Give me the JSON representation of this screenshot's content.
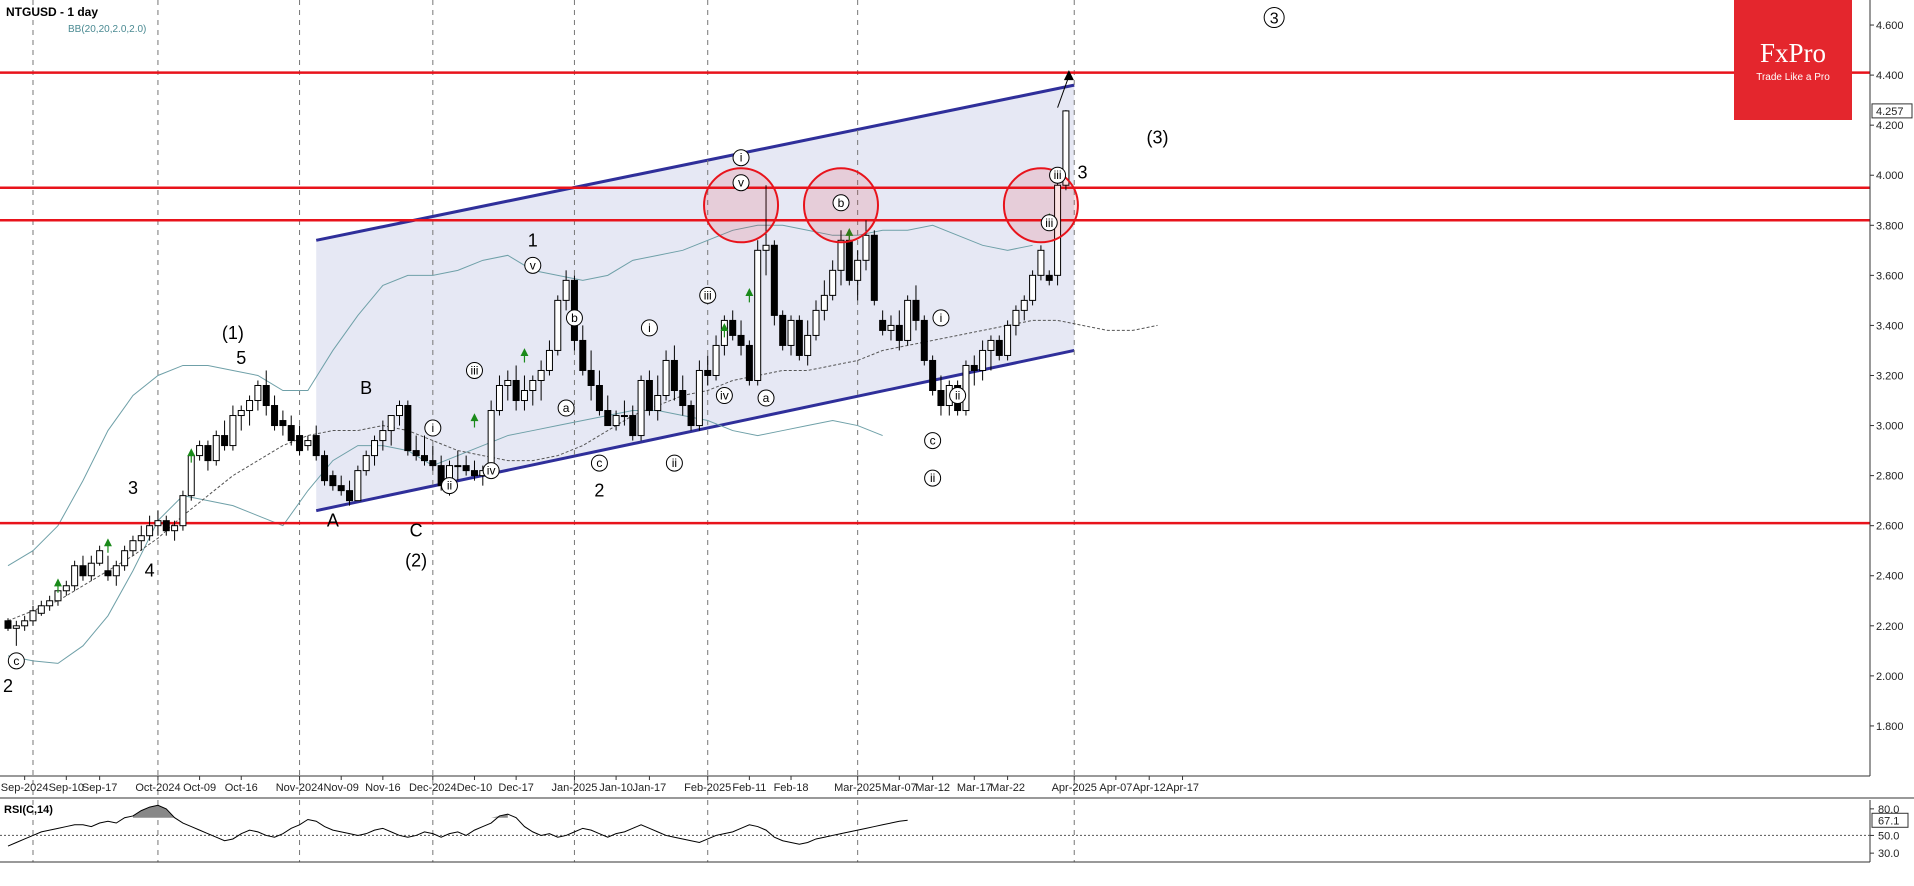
{
  "header": {
    "title": "NTGUSD - 1 day",
    "indicator": "BB(20,20,2.0,2.0)"
  },
  "logo": {
    "brand": "FxPro",
    "tagline": "Trade Like a Pro",
    "color": "#e4262d"
  },
  "colors": {
    "level_line": "#e8131b",
    "channel_line": "#2f2f9a",
    "channel_fill": "#e6e8f4",
    "bb_band": "#6fa0a8",
    "bb_mid": "#555555",
    "up_arrow": "#1a8a1a",
    "circle": "#e8131b"
  },
  "chart_data": {
    "type": "candlestick",
    "symbol": "NTGUSD",
    "timeframe": "1 day",
    "ylim": [
      1.6,
      4.7
    ],
    "y_ticks": [
      "4.600",
      "4.400",
      "4.200",
      "4.000",
      "3.800",
      "3.600",
      "3.400",
      "3.200",
      "3.000",
      "2.800",
      "2.600",
      "2.400",
      "2.200",
      "2.000",
      "1.800"
    ],
    "y_tick_values": [
      4.6,
      4.4,
      4.2,
      4.0,
      3.8,
      3.6,
      3.4,
      3.2,
      3.0,
      2.8,
      2.6,
      2.4,
      2.2,
      2.0,
      1.8
    ],
    "last_price": "4.257",
    "last_price_value": 4.257,
    "x_labels": [
      "Sep-2024",
      "Sep-10",
      "Sep-17",
      "Oct-2024",
      "Oct-09",
      "Oct-16",
      "Nov-2024",
      "Nov-09",
      "Nov-16",
      "Dec-2024",
      "Dec-10",
      "Dec-17",
      "Jan-2025",
      "Jan-10",
      "Jan-17",
      "Feb-2025",
      "Feb-11",
      "Feb-18",
      "Mar-2025",
      "Mar-07",
      "Mar-12",
      "Mar-17",
      "Mar-22",
      "Apr-2025",
      "Apr-07",
      "Apr-12",
      "Apr-17"
    ],
    "x_label_index": [
      2,
      7,
      11,
      18,
      23,
      28,
      35,
      40,
      45,
      51,
      56,
      61,
      68,
      73,
      77,
      84,
      89,
      94,
      102,
      107,
      111,
      116,
      120,
      128,
      133,
      137,
      141
    ],
    "month_grid_index": [
      3,
      18,
      35,
      51,
      68,
      84,
      102,
      128
    ],
    "levels": [
      4.41,
      3.95,
      3.82,
      2.61
    ],
    "channel": {
      "upper": [
        [
          37,
          3.74
        ],
        [
          128,
          4.36
        ]
      ],
      "lower": [
        [
          37,
          2.66
        ],
        [
          128,
          3.3
        ]
      ]
    },
    "candles": [
      [
        2.22,
        2.23,
        2.18,
        2.19
      ],
      [
        2.19,
        2.22,
        2.12,
        2.2
      ],
      [
        2.2,
        2.24,
        2.18,
        2.22
      ],
      [
        2.22,
        2.28,
        2.2,
        2.26
      ],
      [
        2.25,
        2.3,
        2.24,
        2.28
      ],
      [
        2.28,
        2.32,
        2.26,
        2.3
      ],
      [
        2.3,
        2.35,
        2.28,
        2.34
      ],
      [
        2.34,
        2.38,
        2.32,
        2.36
      ],
      [
        2.36,
        2.46,
        2.34,
        2.44
      ],
      [
        2.44,
        2.48,
        2.38,
        2.4
      ],
      [
        2.4,
        2.48,
        2.38,
        2.45
      ],
      [
        2.45,
        2.52,
        2.44,
        2.5
      ],
      [
        2.42,
        2.48,
        2.38,
        2.4
      ],
      [
        2.4,
        2.46,
        2.36,
        2.44
      ],
      [
        2.44,
        2.52,
        2.42,
        2.5
      ],
      [
        2.5,
        2.56,
        2.48,
        2.54
      ],
      [
        2.54,
        2.6,
        2.5,
        2.56
      ],
      [
        2.56,
        2.64,
        2.54,
        2.6
      ],
      [
        2.6,
        2.66,
        2.56,
        2.62
      ],
      [
        2.62,
        2.64,
        2.56,
        2.58
      ],
      [
        2.58,
        2.62,
        2.54,
        2.6
      ],
      [
        2.6,
        2.74,
        2.58,
        2.72
      ],
      [
        2.72,
        2.9,
        2.7,
        2.88
      ],
      [
        2.88,
        2.94,
        2.86,
        2.92
      ],
      [
        2.92,
        2.94,
        2.82,
        2.86
      ],
      [
        2.86,
        2.98,
        2.84,
        2.96
      ],
      [
        2.96,
        3.02,
        2.9,
        2.92
      ],
      [
        2.92,
        3.08,
        2.9,
        3.04
      ],
      [
        3.04,
        3.08,
        2.98,
        3.06
      ],
      [
        3.06,
        3.12,
        3.0,
        3.1
      ],
      [
        3.1,
        3.18,
        3.06,
        3.16
      ],
      [
        3.16,
        3.22,
        3.04,
        3.08
      ],
      [
        3.08,
        3.12,
        2.98,
        3.0
      ],
      [
        3.02,
        3.06,
        2.96,
        3.0
      ],
      [
        3.0,
        3.04,
        2.92,
        2.94
      ],
      [
        2.96,
        3.0,
        2.88,
        2.9
      ],
      [
        2.92,
        2.96,
        2.9,
        2.94
      ],
      [
        2.96,
        3.0,
        2.86,
        2.88
      ],
      [
        2.88,
        2.9,
        2.76,
        2.78
      ],
      [
        2.8,
        2.82,
        2.74,
        2.76
      ],
      [
        2.76,
        2.8,
        2.72,
        2.74
      ],
      [
        2.74,
        2.78,
        2.68,
        2.7
      ],
      [
        2.7,
        2.84,
        2.7,
        2.82
      ],
      [
        2.82,
        2.9,
        2.8,
        2.88
      ],
      [
        2.88,
        2.96,
        2.84,
        2.94
      ],
      [
        2.94,
        3.02,
        2.9,
        2.98
      ],
      [
        2.98,
        3.04,
        2.92,
        3.04
      ],
      [
        3.04,
        3.1,
        3.0,
        3.08
      ],
      [
        3.08,
        3.1,
        2.88,
        2.9
      ],
      [
        2.9,
        2.96,
        2.86,
        2.88
      ],
      [
        2.88,
        2.96,
        2.84,
        2.86
      ],
      [
        2.86,
        2.92,
        2.82,
        2.84
      ],
      [
        2.84,
        2.88,
        2.74,
        2.76
      ],
      [
        2.76,
        2.86,
        2.72,
        2.84
      ],
      [
        2.84,
        2.9,
        2.78,
        2.84
      ],
      [
        2.84,
        2.88,
        2.8,
        2.82
      ],
      [
        2.82,
        2.86,
        2.78,
        2.8
      ],
      [
        2.8,
        2.84,
        2.76,
        2.82
      ],
      [
        2.82,
        3.1,
        2.8,
        3.06
      ],
      [
        3.06,
        3.2,
        3.04,
        3.16
      ],
      [
        3.16,
        3.22,
        3.1,
        3.18
      ],
      [
        3.18,
        3.24,
        3.06,
        3.1
      ],
      [
        3.1,
        3.2,
        3.06,
        3.14
      ],
      [
        3.14,
        3.2,
        3.08,
        3.18
      ],
      [
        3.18,
        3.26,
        3.1,
        3.22
      ],
      [
        3.22,
        3.34,
        3.2,
        3.3
      ],
      [
        3.3,
        3.52,
        3.28,
        3.5
      ],
      [
        3.5,
        3.62,
        3.46,
        3.58
      ],
      [
        3.58,
        3.6,
        3.3,
        3.34
      ],
      [
        3.34,
        3.4,
        3.2,
        3.22
      ],
      [
        3.22,
        3.3,
        3.1,
        3.16
      ],
      [
        3.16,
        3.22,
        3.04,
        3.06
      ],
      [
        3.06,
        3.12,
        3.0,
        3.0
      ],
      [
        3.0,
        3.06,
        2.98,
        3.04
      ],
      [
        3.04,
        3.1,
        3.0,
        3.04
      ],
      [
        3.04,
        3.08,
        2.94,
        2.96
      ],
      [
        2.96,
        3.2,
        2.94,
        3.18
      ],
      [
        3.18,
        3.22,
        3.04,
        3.06
      ],
      [
        3.06,
        3.2,
        3.02,
        3.12
      ],
      [
        3.12,
        3.3,
        3.1,
        3.26
      ],
      [
        3.26,
        3.32,
        3.1,
        3.14
      ],
      [
        3.14,
        3.2,
        3.04,
        3.08
      ],
      [
        3.08,
        3.1,
        2.98,
        3.0
      ],
      [
        3.0,
        3.26,
        2.98,
        3.22
      ],
      [
        3.22,
        3.28,
        3.16,
        3.2
      ],
      [
        3.2,
        3.36,
        3.18,
        3.32
      ],
      [
        3.32,
        3.44,
        3.28,
        3.42
      ],
      [
        3.42,
        3.46,
        3.34,
        3.36
      ],
      [
        3.36,
        3.42,
        3.28,
        3.32
      ],
      [
        3.32,
        3.34,
        3.16,
        3.18
      ],
      [
        3.18,
        3.74,
        3.16,
        3.7
      ],
      [
        3.7,
        3.96,
        3.6,
        3.72
      ],
      [
        3.72,
        3.74,
        3.4,
        3.44
      ],
      [
        3.44,
        3.46,
        3.3,
        3.32
      ],
      [
        3.32,
        3.44,
        3.28,
        3.42
      ],
      [
        3.42,
        3.44,
        3.26,
        3.28
      ],
      [
        3.28,
        3.42,
        3.24,
        3.36
      ],
      [
        3.36,
        3.5,
        3.34,
        3.46
      ],
      [
        3.46,
        3.58,
        3.42,
        3.52
      ],
      [
        3.52,
        3.66,
        3.5,
        3.62
      ],
      [
        3.62,
        3.78,
        3.56,
        3.74
      ],
      [
        3.74,
        3.76,
        3.56,
        3.58
      ],
      [
        3.58,
        3.7,
        3.5,
        3.66
      ],
      [
        3.66,
        3.82,
        3.62,
        3.76
      ],
      [
        3.76,
        3.78,
        3.48,
        3.5
      ],
      [
        3.42,
        3.46,
        3.36,
        3.38
      ],
      [
        3.38,
        3.44,
        3.34,
        3.4
      ],
      [
        3.4,
        3.46,
        3.3,
        3.34
      ],
      [
        3.34,
        3.52,
        3.32,
        3.5
      ],
      [
        3.5,
        3.56,
        3.38,
        3.42
      ],
      [
        3.42,
        3.44,
        3.24,
        3.26
      ],
      [
        3.26,
        3.28,
        3.12,
        3.14
      ],
      [
        3.14,
        3.2,
        3.04,
        3.08
      ],
      [
        3.08,
        3.18,
        3.04,
        3.16
      ],
      [
        3.16,
        3.18,
        3.04,
        3.06
      ],
      [
        3.06,
        3.26,
        3.04,
        3.24
      ],
      [
        3.24,
        3.28,
        3.16,
        3.22
      ],
      [
        3.22,
        3.34,
        3.18,
        3.3
      ],
      [
        3.3,
        3.36,
        3.22,
        3.34
      ],
      [
        3.34,
        3.36,
        3.26,
        3.28
      ],
      [
        3.28,
        3.42,
        3.26,
        3.4
      ],
      [
        3.4,
        3.48,
        3.36,
        3.46
      ],
      [
        3.46,
        3.52,
        3.42,
        3.5
      ],
      [
        3.5,
        3.62,
        3.48,
        3.6
      ],
      [
        3.6,
        3.72,
        3.58,
        3.7
      ],
      [
        3.6,
        3.62,
        3.56,
        3.58
      ],
      [
        3.6,
        3.98,
        3.56,
        3.96
      ],
      [
        3.96,
        4.26,
        3.94,
        4.257
      ]
    ],
    "bb_mid": [
      2.22,
      2.26,
      2.3,
      2.36,
      2.42,
      2.48,
      2.55,
      2.64,
      2.72,
      2.8,
      2.86,
      2.92,
      2.96,
      2.98,
      2.98,
      3.0,
      2.98,
      2.94,
      2.9,
      2.88,
      2.86,
      2.86,
      2.88,
      2.92,
      2.98,
      3.04,
      3.08,
      3.12,
      3.14,
      3.18,
      3.2,
      3.22,
      3.22,
      3.24,
      3.26,
      3.3,
      3.32,
      3.34,
      3.36,
      3.38,
      3.4,
      3.42,
      3.42,
      3.4,
      3.38,
      3.38,
      3.4
    ],
    "bb_upper": [
      2.44,
      2.5,
      2.6,
      2.78,
      2.98,
      3.12,
      3.2,
      3.24,
      3.24,
      3.22,
      3.2,
      3.14,
      3.14,
      3.3,
      3.44,
      3.56,
      3.6,
      3.6,
      3.62,
      3.66,
      3.68,
      3.62,
      3.6,
      3.58,
      3.6,
      3.66,
      3.68,
      3.7,
      3.74,
      3.78,
      3.8,
      3.8,
      3.78,
      3.76,
      3.76,
      3.78,
      3.78,
      3.8,
      3.76,
      3.72,
      3.7,
      3.72
    ],
    "bb_lower": [
      2.08,
      2.06,
      2.05,
      2.12,
      2.24,
      2.42,
      2.62,
      2.72,
      2.7,
      2.68,
      2.64,
      2.6,
      2.74,
      2.86,
      2.92,
      2.92,
      2.9,
      2.84,
      2.88,
      2.92,
      2.96,
      2.98,
      3.0,
      3.02,
      3.04,
      3.06,
      3.06,
      3.04,
      3.02,
      2.98,
      2.96,
      2.98,
      3.0,
      3.02,
      3.0,
      2.96
    ],
    "rsi": {
      "label": "RSI(C,14)",
      "ylim": [
        20,
        90
      ],
      "ticks": [
        "80.0",
        "50.0",
        "30.0"
      ],
      "tick_values": [
        80,
        50,
        30
      ],
      "current": "67.1",
      "current_value": 67.1,
      "level": 50,
      "values": [
        38,
        42,
        46,
        50,
        54,
        56,
        58,
        60,
        62,
        62,
        60,
        64,
        66,
        64,
        70,
        72,
        78,
        82,
        84,
        80,
        70,
        64,
        60,
        56,
        52,
        48,
        44,
        46,
        52,
        56,
        54,
        50,
        48,
        52,
        58,
        62,
        68,
        66,
        60,
        56,
        54,
        52,
        50,
        52,
        56,
        58,
        54,
        50,
        48,
        50,
        54,
        52,
        48,
        52,
        54,
        50,
        56,
        60,
        64,
        72,
        74,
        70,
        60,
        54,
        50,
        52,
        48,
        50,
        54,
        58,
        56,
        52,
        48,
        52,
        54,
        58,
        62,
        58,
        54,
        50,
        48,
        46,
        44,
        42,
        46,
        50,
        52,
        54,
        58,
        62,
        60,
        56,
        48,
        44,
        42,
        40,
        42,
        46,
        48,
        50,
        52,
        54,
        56,
        58,
        60,
        62,
        64,
        66,
        67.1
      ],
      "shaded_above": [
        70
      ]
    },
    "waves": [
      {
        "text": "2",
        "i": 0,
        "v": 1.96,
        "style": "plain"
      },
      {
        "text": "c",
        "i": 1,
        "v": 2.06,
        "style": "circle"
      },
      {
        "text": "3",
        "i": 15,
        "v": 2.75,
        "style": "plain"
      },
      {
        "text": "4",
        "i": 17,
        "v": 2.42,
        "style": "plain"
      },
      {
        "text": "(1)",
        "i": 27,
        "v": 3.37,
        "style": "plain"
      },
      {
        "text": "5",
        "i": 28,
        "v": 3.27,
        "style": "plain"
      },
      {
        "text": "B",
        "i": 43,
        "v": 3.15,
        "style": "plain"
      },
      {
        "text": "A",
        "i": 39,
        "v": 2.62,
        "style": "plain"
      },
      {
        "text": "C",
        "i": 49,
        "v": 2.58,
        "style": "plain"
      },
      {
        "text": "(2)",
        "i": 49,
        "v": 2.46,
        "style": "plain"
      },
      {
        "text": "i",
        "i": 51,
        "v": 2.99,
        "style": "circle"
      },
      {
        "text": "ii",
        "i": 53,
        "v": 2.76,
        "style": "circle"
      },
      {
        "text": "iii",
        "i": 56,
        "v": 3.22,
        "style": "circle"
      },
      {
        "text": "iv",
        "i": 58,
        "v": 2.82,
        "style": "circle"
      },
      {
        "text": "1",
        "i": 63,
        "v": 3.74,
        "style": "plain"
      },
      {
        "text": "v",
        "i": 63,
        "v": 3.64,
        "style": "circle"
      },
      {
        "text": "b",
        "i": 68,
        "v": 3.43,
        "style": "circle"
      },
      {
        "text": "a",
        "i": 67,
        "v": 3.07,
        "style": "circle"
      },
      {
        "text": "c",
        "i": 71,
        "v": 2.85,
        "style": "circle"
      },
      {
        "text": "2",
        "i": 71,
        "v": 2.74,
        "style": "plain"
      },
      {
        "text": "i",
        "i": 77,
        "v": 3.39,
        "style": "circle"
      },
      {
        "text": "ii",
        "i": 80,
        "v": 2.85,
        "style": "circle"
      },
      {
        "text": "iii",
        "i": 84,
        "v": 3.52,
        "style": "circle"
      },
      {
        "text": "iv",
        "i": 86,
        "v": 3.12,
        "style": "circle"
      },
      {
        "text": "i",
        "i": 88,
        "v": 4.07,
        "style": "circle"
      },
      {
        "text": "v",
        "i": 88,
        "v": 3.97,
        "style": "circle"
      },
      {
        "text": "a",
        "i": 91,
        "v": 3.11,
        "style": "circle"
      },
      {
        "text": "b",
        "i": 100,
        "v": 3.89,
        "style": "circle"
      },
      {
        "text": "i",
        "i": 112,
        "v": 3.43,
        "style": "circle"
      },
      {
        "text": "ii",
        "i": 114,
        "v": 3.12,
        "style": "circle"
      },
      {
        "text": "c",
        "i": 111,
        "v": 2.94,
        "style": "circle"
      },
      {
        "text": "ii",
        "i": 111,
        "v": 2.79,
        "style": "circle"
      },
      {
        "text": "iii",
        "i": 125,
        "v": 3.81,
        "style": "circle"
      },
      {
        "text": "iii",
        "i": 126,
        "v": 4.0,
        "style": "circle"
      },
      {
        "text": "3",
        "i": 129,
        "v": 4.01,
        "style": "plain"
      },
      {
        "text": "(3)",
        "i": 138,
        "v": 4.15,
        "style": "plain"
      },
      {
        "text": "3",
        "i": 152,
        "v": 4.63,
        "style": "circle-big"
      }
    ],
    "circles": [
      [
        88,
        3.88
      ],
      [
        100,
        3.88
      ],
      [
        124,
        3.88
      ]
    ],
    "up_arrows": [
      [
        6,
        2.36
      ],
      [
        12,
        2.52
      ],
      [
        22,
        2.88
      ],
      [
        56,
        3.02
      ],
      [
        62,
        3.28
      ],
      [
        86,
        3.38
      ],
      [
        89,
        3.52
      ],
      [
        101,
        3.76
      ],
      [
        125,
        3.82
      ]
    ],
    "target_arrow": {
      "from": [
        126,
        4.27
      ],
      "to": [
        127,
        4.42
      ]
    }
  }
}
